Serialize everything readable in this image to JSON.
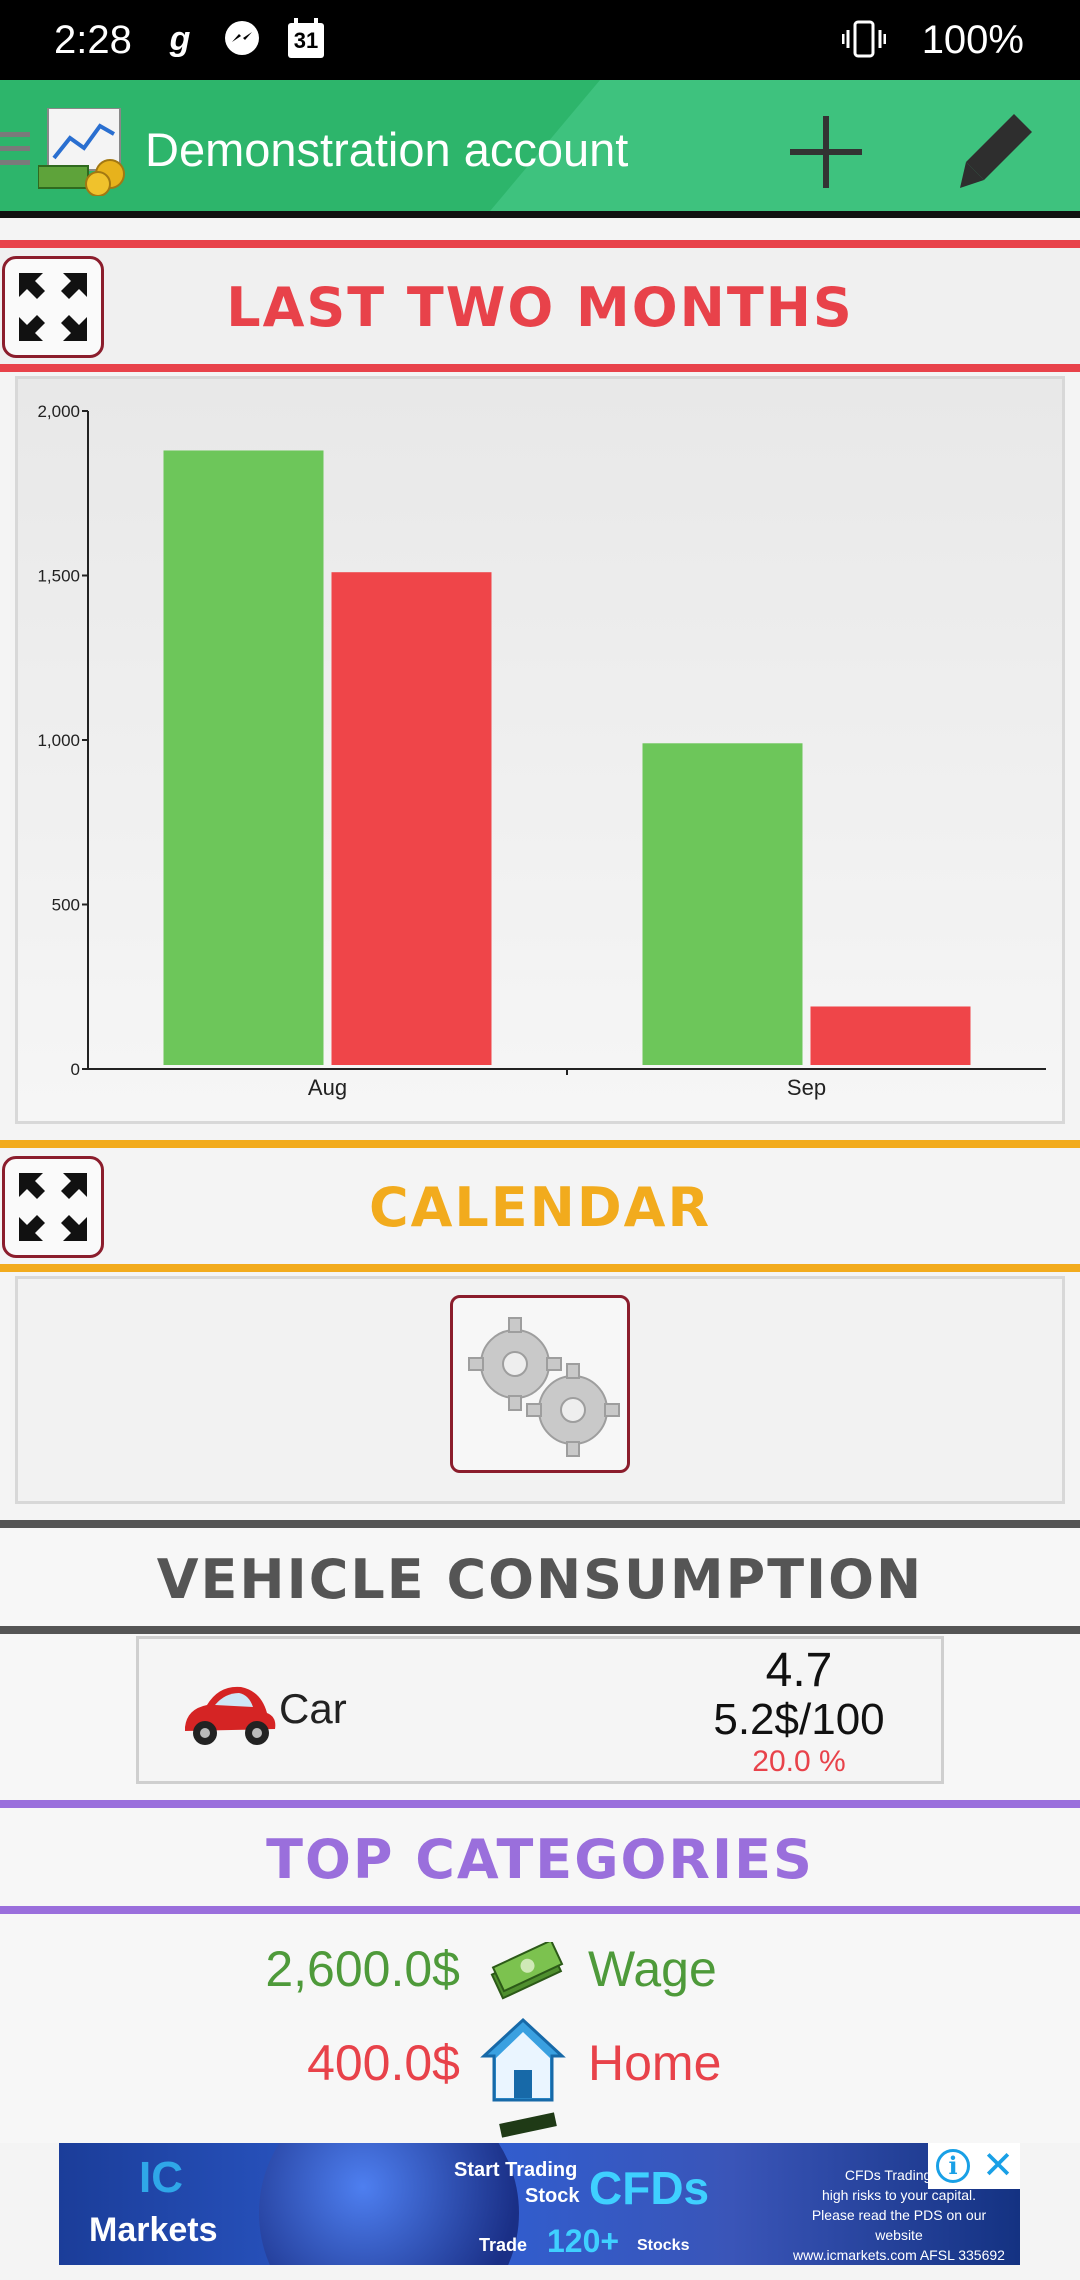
{
  "status_bar": {
    "time": "2:28",
    "battery": "100%",
    "icons": [
      "gboard-icon",
      "messenger-icon",
      "calendar-icon",
      "vibrate-icon"
    ],
    "calendar_day": "31"
  },
  "app_bar": {
    "title": "Demonstration account",
    "actions": [
      "add-icon",
      "edit-icon"
    ],
    "color": "#2db56b"
  },
  "sections": {
    "last_two_months": {
      "title": "LAST TWO MONTHS",
      "color": "#e8424a"
    },
    "calendar": {
      "title": "CALENDAR",
      "color": "#f2ab1d"
    },
    "vehicle": {
      "title": "VEHICLE CONSUMPTION",
      "color": "#555555"
    },
    "top_categories": {
      "title": "TOP CATEGORIES",
      "color": "#9a6fdc"
    }
  },
  "chart_data": {
    "type": "bar",
    "categories": [
      "Aug",
      "Sep"
    ],
    "series": [
      {
        "values": [
          1880,
          990
        ],
        "color": "#6dc65a"
      },
      {
        "values": [
          1510,
          190
        ],
        "color": "#ef4549"
      }
    ],
    "ylim": [
      0,
      2000
    ],
    "yticks": [
      0,
      500,
      1000,
      1500,
      2000
    ],
    "ytick_labels": [
      "0",
      "500",
      "1,000",
      "1,500",
      "2,000"
    ],
    "grid": false
  },
  "vehicle": {
    "name": "Car",
    "value": "4.7",
    "cost": "5.2$/100",
    "percent": "20.0 %"
  },
  "top_categories": [
    {
      "amount": "2,600.0$",
      "name": "Wage",
      "icon": "money-icon",
      "color": "#4e9a3a"
    },
    {
      "amount": "400.0$",
      "name": "Home",
      "icon": "house-icon",
      "color": "#e8424a"
    }
  ],
  "ad": {
    "brand": "Markets",
    "brand_prefix": "IC",
    "headline": "Start Trading",
    "sub": "Stock",
    "cfds": "CFDs",
    "trade": "Trade",
    "stocks_count": "120+",
    "stocks": "Stocks",
    "disclaimer_1": "CFDs Trading inv",
    "disclaimer_2": "high risks to your capital.",
    "disclaimer_3": "Please read the PDS on our website",
    "disclaimer_4": "www.icmarkets.com AFSL 335692"
  }
}
